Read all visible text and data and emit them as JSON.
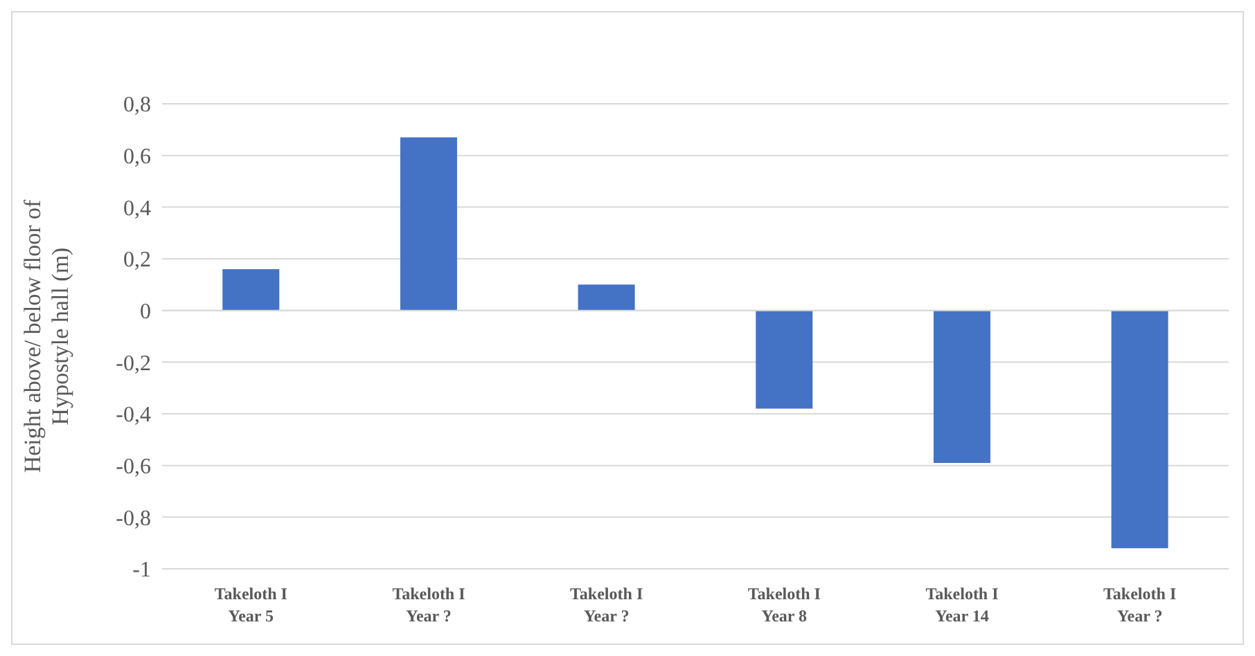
{
  "chart_data": {
    "type": "bar",
    "categories": [
      "Takeloth I\nYear 5",
      "Takeloth I\nYear ?",
      "Takeloth I\nYear ?",
      "Takeloth I\nYear 8",
      "Takeloth I\nYear 14",
      "Takeloth I\nYear ?"
    ],
    "values": [
      0.16,
      0.67,
      0.1,
      -0.38,
      -0.59,
      -0.92
    ],
    "color": "#4472c4",
    "ylabel": "Height above/ below floor of\nHypostyle hall (m)",
    "ylim": [
      -1,
      0.8
    ],
    "yticks": [
      {
        "value": -1,
        "label": "-1"
      },
      {
        "value": -0.8,
        "label": "-0,8"
      },
      {
        "value": -0.6,
        "label": "-0,6"
      },
      {
        "value": -0.4,
        "label": "-0,4"
      },
      {
        "value": -0.2,
        "label": "-0,2"
      },
      {
        "value": 0,
        "label": "0"
      },
      {
        "value": 0.2,
        "label": "0,2"
      },
      {
        "value": 0.4,
        "label": "0,4"
      },
      {
        "value": 0.6,
        "label": "0,6"
      },
      {
        "value": 0.8,
        "label": "0,8"
      }
    ],
    "grid": "y"
  }
}
